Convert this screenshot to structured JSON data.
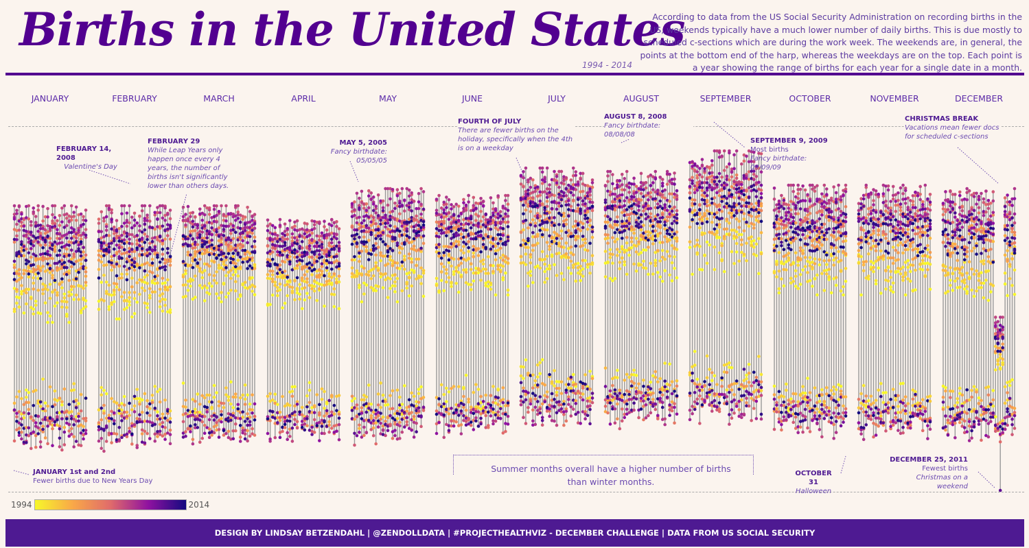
{
  "header": {
    "title": "Births in the United States",
    "years": "1994 - 2014",
    "intro": "According to data from the US Social Security Administration on recording births in the US, weekends typically have a much lower number of daily births. This is due mostly to scheduled c-sections which are during the work week. The weekends are, in general, the points at the bottom end of the harp, whereas the weekdays are on the top. Each point is a year showing the range of births for each year for a single date in a month."
  },
  "chart_data": {
    "type": "scatter",
    "description_type": "harp: one vertical line per calendar date, one point per year",
    "categories": [
      "JANUARY",
      "FEBRUARY",
      "MARCH",
      "APRIL",
      "MAY",
      "JUNE",
      "JULY",
      "AUGUST",
      "SEPTEMBER",
      "OCTOBER",
      "NOVEMBER",
      "DECEMBER"
    ],
    "days_in_month": [
      31,
      29,
      31,
      30,
      31,
      30,
      31,
      31,
      30,
      31,
      30,
      31
    ],
    "year_range": [
      1994,
      2014
    ],
    "color_scale": {
      "min_label": "1994",
      "max_label": "2014",
      "colors": [
        "#f7f72a",
        "#f9a848",
        "#e06b6b",
        "#8f12a0",
        "#140a80"
      ]
    },
    "line_color": "#999999",
    "annotations": [
      {
        "title": "FEBRUARY 14, 2008",
        "text": "Valentine's Day"
      },
      {
        "title": "FEBRUARY 29",
        "text": "While Leap Years only happen once every 4 years, the number of births isn't significantly lower than others days."
      },
      {
        "title": "MAY 5, 2005",
        "text": "Fancy birthdate: 05/05/05"
      },
      {
        "title": "FOURTH OF JULY",
        "text": "There are fewer births on the holiday, specifically when the 4th is on a weekday"
      },
      {
        "title": "AUGUST 8, 2008",
        "text": "Fancy birthdate: 08/08/08"
      },
      {
        "title": "SEPTEMBER 9, 2009",
        "text": "Most births",
        "text2": "Fancy birthdate: 09/09/09"
      },
      {
        "title": "CHRISTMAS BREAK",
        "text": "Vacations mean fewer docs for scheduled c-sections"
      },
      {
        "title": "JANUARY 1st and 2nd",
        "text": "Fewer births due to New Years Day"
      },
      {
        "title": "OCTOBER 31",
        "text": "Halloween"
      },
      {
        "title": "DECEMBER 25, 2011",
        "text": "Fewest births",
        "text2": "Christmas on a weekend"
      }
    ],
    "callout": "Summer months overall have a higher number of births than winter months."
  },
  "footer": "DESIGN BY LINDSAY BETZENDAHL  |  @ZENDOLLDATA  |  #PROJECTHEALTHVIZ - DECEMBER CHALLENGE  |  DATA FROM US SOCIAL SECURITY"
}
